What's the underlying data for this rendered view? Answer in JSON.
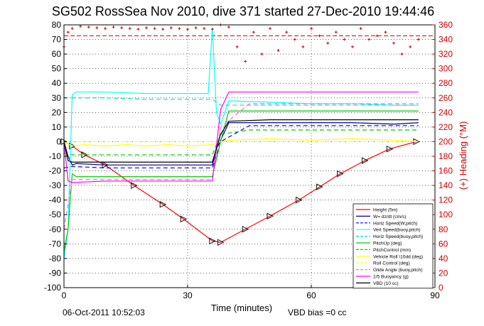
{
  "chart_data": {
    "type": "line",
    "title": "SG502 RossSea Nov 2010, dive 371 started 27-Dec-2010 19:44:46",
    "xlabel": "Time (minutes)",
    "ylabel_right": "(+) Heading (°M)",
    "footer_left": "06-Oct-2011 10:52:03",
    "footer_right": "VBD bias =0 cc",
    "xlim": [
      0,
      90
    ],
    "ylim": [
      -100,
      80
    ],
    "ylim_right": [
      0,
      360
    ],
    "x_ticks": [
      0,
      30,
      60,
      90
    ],
    "y_ticks": [
      -100,
      -90,
      -80,
      -70,
      -60,
      -50,
      -40,
      -30,
      -20,
      -10,
      0,
      10,
      20,
      30,
      40,
      50,
      60,
      70,
      80
    ],
    "y_ticks_right": [
      0,
      20,
      40,
      60,
      80,
      100,
      120,
      140,
      160,
      180,
      200,
      220,
      240,
      260,
      280,
      300,
      320,
      340,
      360
    ],
    "grid": true,
    "legend_position": "bottom-right",
    "colors": {
      "height": "#ff0000",
      "w": "#00008b",
      "horiz_speed": "#00ffff",
      "pitch": "#00cc00",
      "roll": "#ffff00",
      "buoyancy": "#ff00ff",
      "vbd": "#000000",
      "heading": "#cc0000"
    },
    "legend": [
      "Height (5m)",
      "W= dz/dt (cm/s)",
      "Horiz Speed(W,pitch)",
      "Vert Speed(buoy,pitch)",
      "Horiz Speed(buoy,pitch)",
      "PitchUp (deg)",
      "PitchControl (mm)",
      "Vehicle Roll \\10dd (deg)",
      "Roll Control (deg)",
      "Glide Angle (buoy,pitch)",
      "1/5 Buoyancy (g)",
      "VBD (10 cc)"
    ],
    "series": [
      {
        "name": "Height (5m)",
        "color": "#ff0000",
        "style": "solid",
        "marker": "triangle",
        "x": [
          0,
          2,
          5,
          10,
          17,
          24,
          29,
          36,
          38,
          44,
          50,
          57,
          62,
          67,
          73,
          79,
          85.5
        ],
        "y": [
          0,
          -3,
          -9,
          -16,
          -30,
          -43,
          -53,
          -68,
          -69,
          -60,
          -51,
          -40,
          -31,
          -22,
          -13,
          -5,
          0
        ]
      },
      {
        "name": "W= dz/dt (cm/s)",
        "color": "#00008b",
        "style": "solid",
        "x": [
          0,
          1,
          2,
          3,
          10,
          20,
          30,
          36,
          37,
          40,
          50,
          60,
          70,
          80,
          86
        ],
        "y": [
          0,
          -10,
          -16,
          -15,
          -16,
          -16,
          -16,
          -16,
          -5,
          13,
          13,
          13,
          13,
          12,
          13
        ]
      },
      {
        "name": "Horiz Speed(W,pitch)",
        "color": "#0000ff",
        "style": "dashed",
        "x": [
          0,
          2,
          10,
          20,
          30,
          36,
          38,
          45,
          60,
          75,
          86
        ],
        "y": [
          -18,
          -17,
          -18,
          -18,
          -18,
          -18,
          0,
          11,
          11,
          11,
          11
        ]
      },
      {
        "name": "Vert Speed(buoy,pitch)",
        "color": "#00ffff",
        "style": "solid",
        "x": [
          0,
          1,
          2,
          3,
          10,
          20,
          30,
          35,
          36,
          37,
          38,
          40,
          50,
          60,
          70,
          80,
          86
        ],
        "y": [
          -80,
          -60,
          32,
          34,
          34,
          33,
          33,
          33,
          78,
          20,
          12,
          28,
          27,
          26,
          26,
          25,
          25
        ]
      },
      {
        "name": "Horiz Speed(buoy,pitch)",
        "color": "#00dddd",
        "style": "dashed",
        "x": [
          0,
          2,
          10,
          20,
          30,
          36,
          38,
          45,
          60,
          75,
          86
        ],
        "y": [
          30,
          30,
          30,
          29,
          29,
          29,
          25,
          25,
          25,
          25,
          25
        ]
      },
      {
        "name": "PitchUp (deg)",
        "color": "#00cc00",
        "style": "solid",
        "x": [
          0,
          1,
          2,
          3,
          10,
          20,
          30,
          36,
          38,
          40,
          50,
          60,
          70,
          80,
          86
        ],
        "y": [
          -75,
          -60,
          -22,
          -24,
          -24,
          -24,
          -24,
          -24,
          0,
          21,
          21,
          21,
          21,
          21,
          21
        ]
      },
      {
        "name": "PitchControl (mm)",
        "color": "#00cc00",
        "style": "dashed",
        "x": [
          0,
          2,
          10,
          20,
          30,
          36,
          38,
          45,
          60,
          75,
          86
        ],
        "y": [
          -8,
          -9,
          -9,
          -9,
          -9,
          -9,
          5,
          8,
          8,
          8,
          8
        ]
      },
      {
        "name": "Vehicle Roll \\10dd (deg)",
        "color": "#ffff00",
        "style": "solid",
        "x": [
          0,
          2,
          5,
          10,
          15,
          20,
          25,
          30,
          36,
          38,
          40,
          50,
          60,
          70,
          80,
          86
        ],
        "y": [
          0,
          -3,
          -2,
          -3,
          -2,
          -3,
          -2,
          -3,
          -2,
          0,
          1,
          2,
          1,
          2,
          1,
          0
        ]
      },
      {
        "name": "Roll Control (deg)",
        "color": "#ffff00",
        "style": "dashed",
        "x": [
          0,
          86
        ],
        "y": [
          0,
          0
        ]
      },
      {
        "name": "Glide Angle (buoy,pitch)",
        "color": "#ff66ff",
        "style": "dashed",
        "x": [
          0,
          2,
          10,
          20,
          30,
          36,
          38,
          45,
          60,
          75,
          86
        ],
        "y": [
          -60,
          -26,
          -26,
          -26,
          -26,
          -26,
          10,
          26,
          26,
          26,
          26
        ]
      },
      {
        "name": "1/5 Buoyancy (g)",
        "color": "#ff00ff",
        "style": "solid",
        "x": [
          0,
          1,
          2,
          10,
          20,
          30,
          36,
          38,
          40,
          50,
          60,
          70,
          80,
          86
        ],
        "y": [
          0,
          -27,
          -28,
          -27,
          -27,
          -27,
          -27,
          22,
          34,
          34,
          34,
          34,
          34,
          34
        ]
      },
      {
        "name": "VBD (10 cc)",
        "color": "#000000",
        "style": "solid",
        "x": [
          0,
          1,
          2,
          10,
          20,
          30,
          36,
          38,
          40,
          50,
          60,
          70,
          80,
          86
        ],
        "y": [
          0,
          -13,
          -14,
          -14,
          -14,
          -14,
          -14,
          5,
          14,
          15,
          15,
          15,
          15,
          15
        ]
      }
    ],
    "heading_series": {
      "name": "(+) Heading (°M)",
      "color": "#cc0000",
      "style": "markers",
      "x": [
        0,
        1,
        2,
        4,
        6,
        8,
        10,
        12,
        14,
        16,
        18,
        20,
        22,
        24,
        26,
        28,
        30,
        32,
        34,
        36,
        38,
        40,
        42,
        44,
        46,
        48,
        50,
        52,
        54,
        56,
        58,
        60,
        62,
        64,
        66,
        68,
        70,
        72,
        74,
        76,
        78,
        80,
        82,
        84,
        86
      ],
      "y": [
        330,
        350,
        355,
        358,
        357,
        356,
        355,
        357,
        356,
        355,
        354,
        356,
        355,
        354,
        356,
        355,
        354,
        356,
        355,
        354,
        360,
        357,
        330,
        310,
        350,
        320,
        355,
        325,
        350,
        340,
        330,
        355,
        345,
        335,
        350,
        340,
        330,
        355,
        340,
        345,
        350,
        335,
        320,
        330,
        340
      ]
    },
    "heading_reference": {
      "value": 345,
      "color": "#cc0000",
      "style": "dashed"
    }
  }
}
